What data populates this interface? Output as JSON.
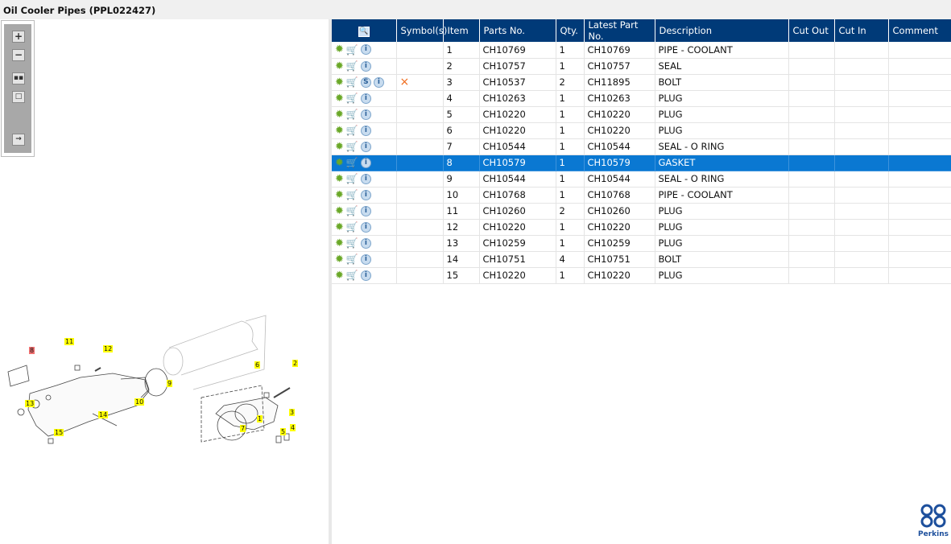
{
  "title": "Oil Cooler Pipes (PPL022427)",
  "toolbar": {
    "icons": [
      "zoom-in-icon",
      "zoom-out-icon",
      "fit-all-icon",
      "fit-window-icon",
      "toggle-panel-icon"
    ]
  },
  "table": {
    "columns": [
      "",
      "Symbol(s)",
      "Item",
      "Parts No.",
      "Qty.",
      "Latest Part No.",
      "Description",
      "Cut Out",
      "Cut In",
      "Comment"
    ],
    "selected_item": "8",
    "rows": [
      {
        "item": "1",
        "part": "CH10769",
        "qty": "1",
        "latest": "CH10769",
        "desc": "PIPE - COOLANT"
      },
      {
        "item": "2",
        "part": "CH10757",
        "qty": "1",
        "latest": "CH10757",
        "desc": "SEAL"
      },
      {
        "item": "3",
        "part": "CH10537",
        "qty": "2",
        "latest": "CH11895",
        "desc": "BOLT",
        "symbol": "×",
        "s": "S"
      },
      {
        "item": "4",
        "part": "CH10263",
        "qty": "1",
        "latest": "CH10263",
        "desc": "PLUG"
      },
      {
        "item": "5",
        "part": "CH10220",
        "qty": "1",
        "latest": "CH10220",
        "desc": "PLUG"
      },
      {
        "item": "6",
        "part": "CH10220",
        "qty": "1",
        "latest": "CH10220",
        "desc": "PLUG"
      },
      {
        "item": "7",
        "part": "CH10544",
        "qty": "1",
        "latest": "CH10544",
        "desc": "SEAL - O RING"
      },
      {
        "item": "8",
        "part": "CH10579",
        "qty": "1",
        "latest": "CH10579",
        "desc": "GASKET"
      },
      {
        "item": "9",
        "part": "CH10544",
        "qty": "1",
        "latest": "CH10544",
        "desc": "SEAL - O RING"
      },
      {
        "item": "10",
        "part": "CH10768",
        "qty": "1",
        "latest": "CH10768",
        "desc": "PIPE - COOLANT"
      },
      {
        "item": "11",
        "part": "CH10260",
        "qty": "2",
        "latest": "CH10260",
        "desc": "PLUG"
      },
      {
        "item": "12",
        "part": "CH10220",
        "qty": "1",
        "latest": "CH10220",
        "desc": "PLUG"
      },
      {
        "item": "13",
        "part": "CH10259",
        "qty": "1",
        "latest": "CH10259",
        "desc": "PLUG"
      },
      {
        "item": "14",
        "part": "CH10751",
        "qty": "4",
        "latest": "CH10751",
        "desc": "BOLT"
      },
      {
        "item": "15",
        "part": "CH10220",
        "qty": "1",
        "latest": "CH10220",
        "desc": "PLUG"
      }
    ]
  },
  "diagram": {
    "callouts": [
      "8",
      "11",
      "12",
      "9",
      "10",
      "13",
      "14",
      "15",
      "6",
      "2",
      "1",
      "7",
      "3",
      "4",
      "5"
    ],
    "highlighted": "8"
  },
  "colors": {
    "header": "#003a78",
    "selected": "#0a78d2",
    "callout": "#ffff00",
    "callout_selected": "#f07070"
  },
  "logo": {
    "text": "Perkins"
  }
}
